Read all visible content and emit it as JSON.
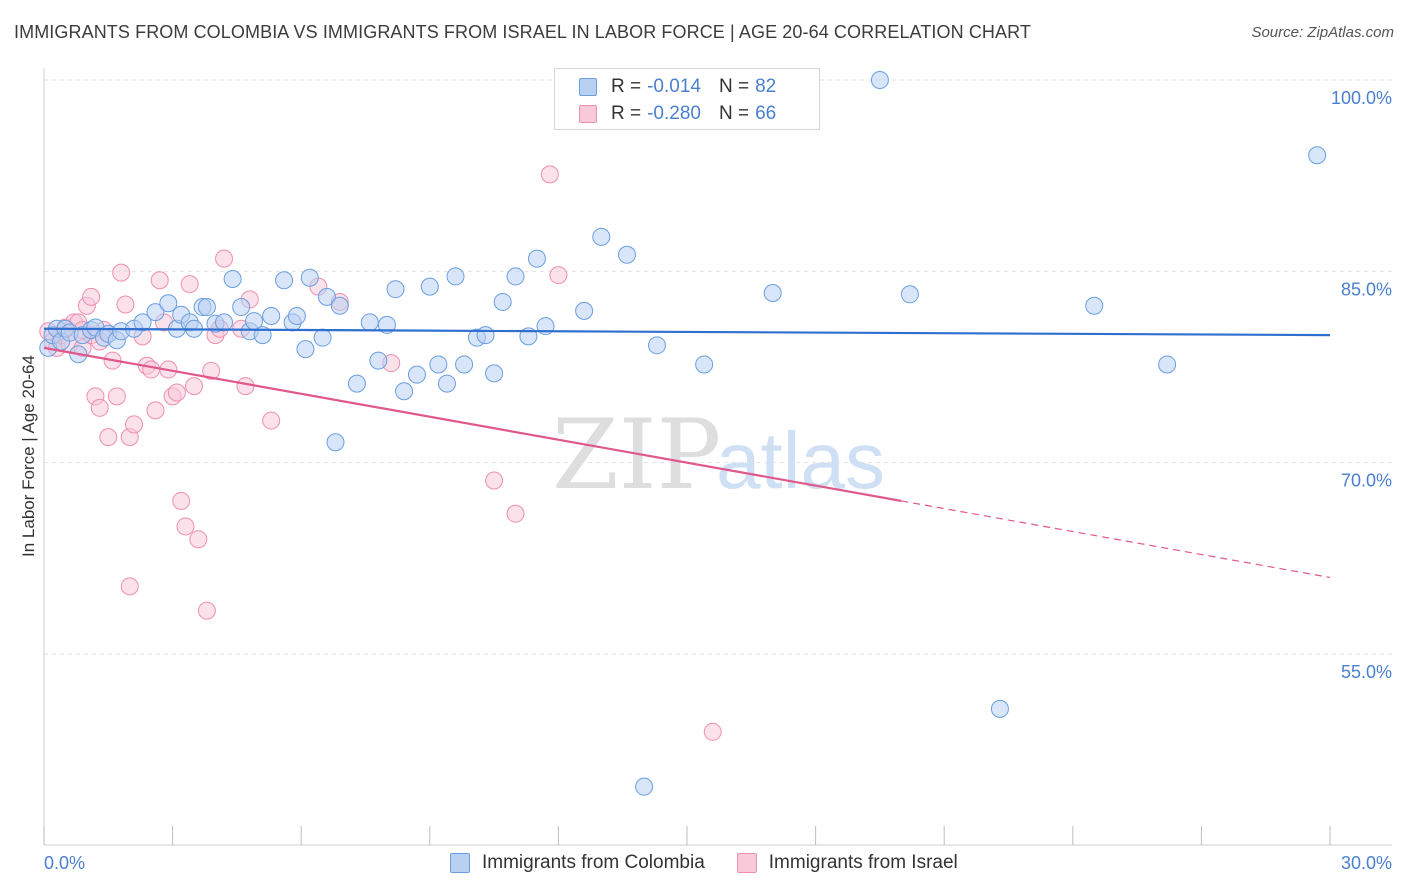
{
  "header": {
    "title": "IMMIGRANTS FROM COLOMBIA VS IMMIGRANTS FROM ISRAEL IN LABOR FORCE | AGE 20-64 CORRELATION CHART",
    "source": "Source: ZipAtlas.com"
  },
  "legend": {
    "blue": {
      "r_label": "R =",
      "r_value": "-0.014",
      "n_label": "N =",
      "n_value": "82"
    },
    "pink": {
      "r_label": "R =",
      "r_value": "-0.280",
      "n_label": "N =",
      "n_value": "66"
    }
  },
  "bottom_legend": {
    "blue_label": "Immigrants from Colombia",
    "pink_label": "Immigrants from Israel"
  },
  "watermark": {
    "zip": "ZIP",
    "atlas": "atlas"
  },
  "colors": {
    "blue_fill": "#b9d0f3",
    "blue_stroke": "#6a9fe0",
    "blue_line": "#2f6fd0",
    "pink_fill": "#f8c9d8",
    "pink_stroke": "#ef8fb0",
    "pink_line": "#e0588a",
    "tick_label": "#4a7fd0",
    "grid": "#e2e2e2"
  },
  "chart_data": {
    "type": "scatter",
    "title": "IMMIGRANTS FROM COLOMBIA VS IMMIGRANTS FROM ISRAEL IN LABOR FORCE | AGE 20-64 CORRELATION CHART",
    "xlabel": "",
    "ylabel": "In Labor Force | Age 20-64",
    "xlim": [
      0,
      30
    ],
    "ylim": [
      40,
      102
    ],
    "x_tick_labels": [
      "0.0%",
      "30.0%"
    ],
    "y_ticks": [
      55,
      70,
      85,
      100
    ],
    "y_tick_labels": [
      "55.0%",
      "70.0%",
      "85.0%",
      "100.0%"
    ],
    "grid": true,
    "legend_position": "top-center",
    "series": [
      {
        "name": "Immigrants from Colombia",
        "color": "blue",
        "trend": {
          "x0": 0,
          "y0": 80.5,
          "x1": 30,
          "y1": 80.0
        },
        "points": [
          [
            0.1,
            79.0
          ],
          [
            0.2,
            80.0
          ],
          [
            0.3,
            80.5
          ],
          [
            0.4,
            79.5
          ],
          [
            0.5,
            80.5
          ],
          [
            0.6,
            80.2
          ],
          [
            0.8,
            78.5
          ],
          [
            0.9,
            80.0
          ],
          [
            1.1,
            80.4
          ],
          [
            1.2,
            80.6
          ],
          [
            1.4,
            79.8
          ],
          [
            1.5,
            80.1
          ],
          [
            1.7,
            79.6
          ],
          [
            1.8,
            80.3
          ],
          [
            2.1,
            80.5
          ],
          [
            2.3,
            81.0
          ],
          [
            2.6,
            81.8
          ],
          [
            2.9,
            82.5
          ],
          [
            3.1,
            80.5
          ],
          [
            3.2,
            81.6
          ],
          [
            3.4,
            81.0
          ],
          [
            3.5,
            80.5
          ],
          [
            3.7,
            82.2
          ],
          [
            3.8,
            82.2
          ],
          [
            4.0,
            80.9
          ],
          [
            4.2,
            81.0
          ],
          [
            4.4,
            84.4
          ],
          [
            4.6,
            82.2
          ],
          [
            4.8,
            80.3
          ],
          [
            4.9,
            81.1
          ],
          [
            5.1,
            80.0
          ],
          [
            5.3,
            81.5
          ],
          [
            5.6,
            84.3
          ],
          [
            5.8,
            81.0
          ],
          [
            5.9,
            81.5
          ],
          [
            6.1,
            78.9
          ],
          [
            6.2,
            84.5
          ],
          [
            6.5,
            79.8
          ],
          [
            6.6,
            83.0
          ],
          [
            6.8,
            71.6
          ],
          [
            6.9,
            82.3
          ],
          [
            7.3,
            76.2
          ],
          [
            7.6,
            81.0
          ],
          [
            7.8,
            78.0
          ],
          [
            8.0,
            80.8
          ],
          [
            8.2,
            83.6
          ],
          [
            8.4,
            75.6
          ],
          [
            8.7,
            76.9
          ],
          [
            9.0,
            83.8
          ],
          [
            9.2,
            77.7
          ],
          [
            9.4,
            76.2
          ],
          [
            9.6,
            84.6
          ],
          [
            9.8,
            77.7
          ],
          [
            10.1,
            79.8
          ],
          [
            10.3,
            80.0
          ],
          [
            10.5,
            77.0
          ],
          [
            10.7,
            82.6
          ],
          [
            11.0,
            84.6
          ],
          [
            11.3,
            79.9
          ],
          [
            11.5,
            86.0
          ],
          [
            11.7,
            80.7
          ],
          [
            12.6,
            81.9
          ],
          [
            13.0,
            87.7
          ],
          [
            13.6,
            86.3
          ],
          [
            14.3,
            79.2
          ],
          [
            15.4,
            77.7
          ],
          [
            17.0,
            83.3
          ],
          [
            19.5,
            100.0
          ],
          [
            20.2,
            83.2
          ],
          [
            22.3,
            50.7
          ],
          [
            24.5,
            82.3
          ],
          [
            26.2,
            77.7
          ],
          [
            29.7,
            94.1
          ],
          [
            14.0,
            44.6
          ]
        ]
      },
      {
        "name": "Immigrants from Israel",
        "color": "pink",
        "trend": {
          "x0": 0,
          "y0": 79.0,
          "x1": 20.0,
          "y1": 67.0,
          "dash_to": {
            "x": 30,
            "y": 61.0
          }
        },
        "points": [
          [
            0.1,
            80.3
          ],
          [
            0.2,
            79.5
          ],
          [
            0.3,
            79.0
          ],
          [
            0.4,
            80.0
          ],
          [
            0.5,
            80.6
          ],
          [
            0.6,
            79.3
          ],
          [
            0.7,
            81.0
          ],
          [
            0.8,
            81.0
          ],
          [
            0.9,
            79.0
          ],
          [
            1.0,
            82.3
          ],
          [
            1.1,
            83.0
          ],
          [
            1.2,
            75.2
          ],
          [
            1.3,
            74.3
          ],
          [
            1.4,
            80.4
          ],
          [
            1.5,
            72.0
          ],
          [
            1.6,
            78.0
          ],
          [
            1.7,
            75.2
          ],
          [
            1.8,
            84.9
          ],
          [
            1.9,
            82.4
          ],
          [
            2.0,
            72.0
          ],
          [
            2.1,
            73.0
          ],
          [
            2.3,
            79.9
          ],
          [
            2.4,
            77.6
          ],
          [
            2.5,
            77.3
          ],
          [
            2.6,
            74.1
          ],
          [
            2.7,
            84.3
          ],
          [
            2.8,
            81.0
          ],
          [
            2.9,
            77.3
          ],
          [
            3.0,
            75.2
          ],
          [
            3.1,
            75.5
          ],
          [
            3.2,
            67.0
          ],
          [
            3.3,
            65.0
          ],
          [
            3.4,
            84.0
          ],
          [
            3.5,
            76.0
          ],
          [
            3.6,
            64.0
          ],
          [
            3.8,
            58.4
          ],
          [
            3.9,
            77.2
          ],
          [
            4.0,
            80.0
          ],
          [
            4.1,
            80.5
          ],
          [
            4.2,
            86.0
          ],
          [
            4.6,
            80.5
          ],
          [
            4.7,
            76.0
          ],
          [
            4.8,
            82.8
          ],
          [
            5.3,
            73.3
          ],
          [
            6.4,
            83.8
          ],
          [
            6.9,
            82.6
          ],
          [
            8.1,
            77.8
          ],
          [
            10.5,
            68.6
          ],
          [
            11.0,
            66.0
          ],
          [
            11.8,
            92.6
          ],
          [
            12.0,
            84.7
          ],
          [
            2.0,
            60.3
          ],
          [
            15.6,
            48.9
          ],
          [
            1.1,
            80.0
          ],
          [
            0.9,
            80.4
          ],
          [
            1.3,
            79.5
          ]
        ]
      }
    ]
  }
}
